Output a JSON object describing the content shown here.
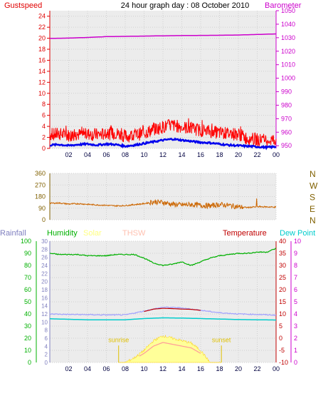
{
  "chart_data": [
    {
      "type": "line",
      "title": "24 hour graph day : 08 October 2010",
      "left_axis": {
        "label": "Gustspeed",
        "color": "#e00000",
        "ticks": [
          "0",
          "2",
          "4",
          "6",
          "8",
          "10",
          "12",
          "14",
          "16",
          "18",
          "20",
          "22",
          "24"
        ],
        "ylim": [
          0,
          25
        ]
      },
      "right_axis": {
        "label": "Barometer",
        "color": "#cc00cc",
        "ticks": [
          "950",
          "960",
          "970",
          "980",
          "990",
          "1000",
          "1010",
          "1020",
          "1030",
          "1040",
          "1050"
        ],
        "ylim": [
          948,
          1050
        ]
      },
      "x_ticks": [
        "02",
        "04",
        "06",
        "08",
        "10",
        "12",
        "14",
        "16",
        "18",
        "20",
        "22",
        "00"
      ],
      "series": [
        {
          "name": "Gustspeed",
          "color": "#ff0000",
          "x": [
            0,
            1,
            2,
            3,
            4,
            5,
            6,
            7,
            8,
            9,
            10,
            11,
            12,
            13,
            14,
            15,
            16,
            17,
            18,
            19,
            20,
            21,
            22,
            23,
            24
          ],
          "values": [
            2.5,
            2.6,
            2.4,
            2.5,
            2.6,
            2.5,
            2.6,
            2.8,
            2.2,
            2.4,
            2.8,
            3.4,
            3.9,
            4.2,
            3.9,
            3.6,
            3.3,
            3.1,
            2.8,
            2.7,
            2.6,
            1.8,
            1.6,
            1.5,
            1.6
          ]
        },
        {
          "name": "Windspeed",
          "color": "#0000ee",
          "x": [
            0,
            1,
            2,
            3,
            4,
            5,
            6,
            7,
            8,
            9,
            10,
            11,
            12,
            13,
            14,
            15,
            16,
            17,
            18,
            19,
            20,
            21,
            22,
            23,
            24
          ],
          "values": [
            0.6,
            0.7,
            0.5,
            0.7,
            0.8,
            0.6,
            0.8,
            0.7,
            0.4,
            0.6,
            0.9,
            1.2,
            1.5,
            1.7,
            1.5,
            1.3,
            1.1,
            1.0,
            0.8,
            0.6,
            0.5,
            0.4,
            0.3,
            0.2,
            0.3
          ]
        },
        {
          "name": "Barometer",
          "color": "#cc00cc",
          "x": [
            0,
            2,
            4,
            6,
            8,
            10,
            12,
            14,
            16,
            18,
            20,
            22,
            24
          ],
          "values": [
            1029.5,
            1029.7,
            1030.2,
            1030.8,
            1031.0,
            1031.2,
            1031.4,
            1031.6,
            1031.7,
            1031.8,
            1032.0,
            1032.4,
            1032.8
          ]
        }
      ]
    },
    {
      "type": "scatter",
      "title": "",
      "y_ticks": [
        "0",
        "90",
        "180",
        "270",
        "360"
      ],
      "ylim": [
        0,
        360
      ],
      "right_labels": [
        "N",
        "W",
        "S",
        "E",
        "N"
      ],
      "right_label_color": "#806000",
      "series": [
        {
          "name": "Wind direction",
          "color": "#cc6600",
          "x": [
            0,
            1,
            2,
            3,
            4,
            5,
            6,
            7,
            8,
            9,
            10,
            11,
            12,
            13,
            14,
            15,
            16,
            17,
            18,
            19,
            20,
            21,
            22,
            23,
            24
          ],
          "values": [
            128,
            130,
            122,
            125,
            120,
            115,
            112,
            108,
            110,
            118,
            125,
            140,
            135,
            120,
            115,
            118,
            112,
            108,
            118,
            112,
            100,
            95,
            102,
            100,
            98
          ]
        }
      ]
    },
    {
      "type": "line",
      "title": "",
      "legend": [
        {
          "label": "Rainfall",
          "color": "#8080c0"
        },
        {
          "label": "Humidity",
          "color": "#00b000"
        },
        {
          "label": "Solar",
          "color": "#ffff80"
        },
        {
          "label": "THSW",
          "color": "#ffc0b0"
        },
        {
          "label": "Temperature",
          "color": "#c00000"
        },
        {
          "label": "Dew Point",
          "color": "#00cccc"
        }
      ],
      "axis_humidity": {
        "ticks": [
          "0",
          "10",
          "20",
          "30",
          "40",
          "50",
          "60",
          "70",
          "80",
          "90",
          "100"
        ],
        "ylim": [
          0,
          100
        ],
        "color": "#00b000"
      },
      "axis_rain": {
        "ticks": [
          "0",
          "2",
          "4",
          "6",
          "8",
          "10",
          "12",
          "14",
          "16",
          "18",
          "20",
          "22",
          "24",
          "26",
          "28",
          "30"
        ],
        "ylim": [
          0,
          30
        ],
        "color": "#8080c0"
      },
      "axis_temp": {
        "ticks": [
          "-10",
          "-5",
          "0",
          "5",
          "10",
          "15",
          "20",
          "25",
          "30",
          "35",
          "40"
        ],
        "ylim": [
          -10,
          40
        ],
        "color": "#c00000"
      },
      "axis_dew": {
        "ticks": [
          "0",
          "1",
          "2",
          "3",
          "4",
          "5",
          "6",
          "7",
          "8",
          "9",
          "10"
        ],
        "ylim": [
          0,
          10
        ],
        "color": "#cc00cc"
      },
      "x_ticks": [
        "02",
        "04",
        "06",
        "08",
        "10",
        "12",
        "14",
        "16",
        "18",
        "20",
        "22",
        "00"
      ],
      "annotations": [
        {
          "text": "sunrise",
          "x": 7.3
        },
        {
          "text": "sunset",
          "x": 18.2
        }
      ],
      "series": [
        {
          "name": "Humidity",
          "color": "#00b000",
          "x": [
            0,
            1,
            2,
            3,
            4,
            5,
            6,
            7,
            8,
            9,
            10,
            11,
            12,
            13,
            14,
            15,
            16,
            17,
            18,
            19,
            20,
            21,
            22,
            23,
            24
          ],
          "values": [
            90,
            89,
            89,
            89,
            88,
            88,
            88,
            89,
            89,
            89,
            86,
            82,
            80,
            81,
            83,
            80,
            83,
            86,
            88,
            89,
            90,
            90,
            91,
            91,
            94
          ]
        },
        {
          "name": "THSW",
          "color": "#a0a0ff",
          "x": [
            0,
            2,
            4,
            6,
            8,
            10,
            12,
            14,
            16,
            18,
            20,
            22,
            24
          ],
          "values": [
            10,
            9.8,
            9.7,
            9.6,
            9.6,
            11.2,
            12.8,
            12.5,
            11.5,
            10.5,
            10,
            9.8,
            9.5
          ]
        },
        {
          "name": "Temperature",
          "color": "#c00000",
          "x": [
            10,
            11,
            12,
            13,
            14,
            15,
            16
          ],
          "values": [
            11,
            12,
            12.3,
            12.2,
            12,
            11.9,
            11.5
          ]
        },
        {
          "name": "Dew Point",
          "color": "#00cccc",
          "x": [
            0,
            2,
            4,
            6,
            8,
            10,
            12,
            14,
            16,
            18,
            20,
            22,
            24
          ],
          "values": [
            8,
            7.8,
            7.6,
            7.6,
            7.6,
            8.1,
            8.4,
            8.3,
            8.1,
            7.9,
            7.7,
            7.6,
            7.5
          ]
        },
        {
          "name": "Solar",
          "color": "#ffff80",
          "x": [
            7.3,
            8,
            9,
            10,
            11,
            12,
            13,
            14,
            15,
            16,
            17,
            18.2
          ],
          "values": [
            0,
            0,
            2,
            5,
            9,
            11,
            10,
            9,
            8,
            5,
            0,
            0
          ]
        }
      ]
    }
  ]
}
